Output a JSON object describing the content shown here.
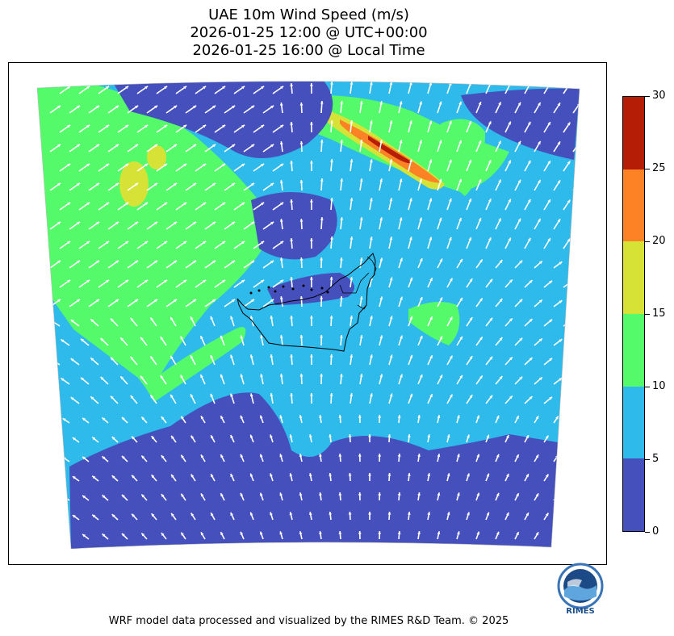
{
  "title": {
    "line1": "UAE 10m Wind Speed (m/s)",
    "line2": "2026-01-25 12:00 @ UTC+00:00",
    "line3": "2026-01-25 16:00 @ Local Time"
  },
  "colorbar": {
    "bins": [
      {
        "from": 0,
        "to": 5,
        "color": "#4650bd"
      },
      {
        "from": 5,
        "to": 10,
        "color": "#2ebaea"
      },
      {
        "from": 10,
        "to": 15,
        "color": "#55fa6a"
      },
      {
        "from": 15,
        "to": 20,
        "color": "#d7e236"
      },
      {
        "from": 20,
        "to": 25,
        "color": "#fc8225"
      },
      {
        "from": 25,
        "to": 30,
        "color": "#b51d06"
      }
    ],
    "ticks": [
      "0",
      "5",
      "10",
      "15",
      "20",
      "25",
      "30"
    ]
  },
  "map": {
    "vector_color": "#ffffff",
    "boundary_color": "#000000"
  },
  "logo": {
    "text": "RIMES",
    "icon": "rimes-logo-icon"
  },
  "footer": "WRF model data processed and visualized by the RIMES R&D Team. © 2025"
}
